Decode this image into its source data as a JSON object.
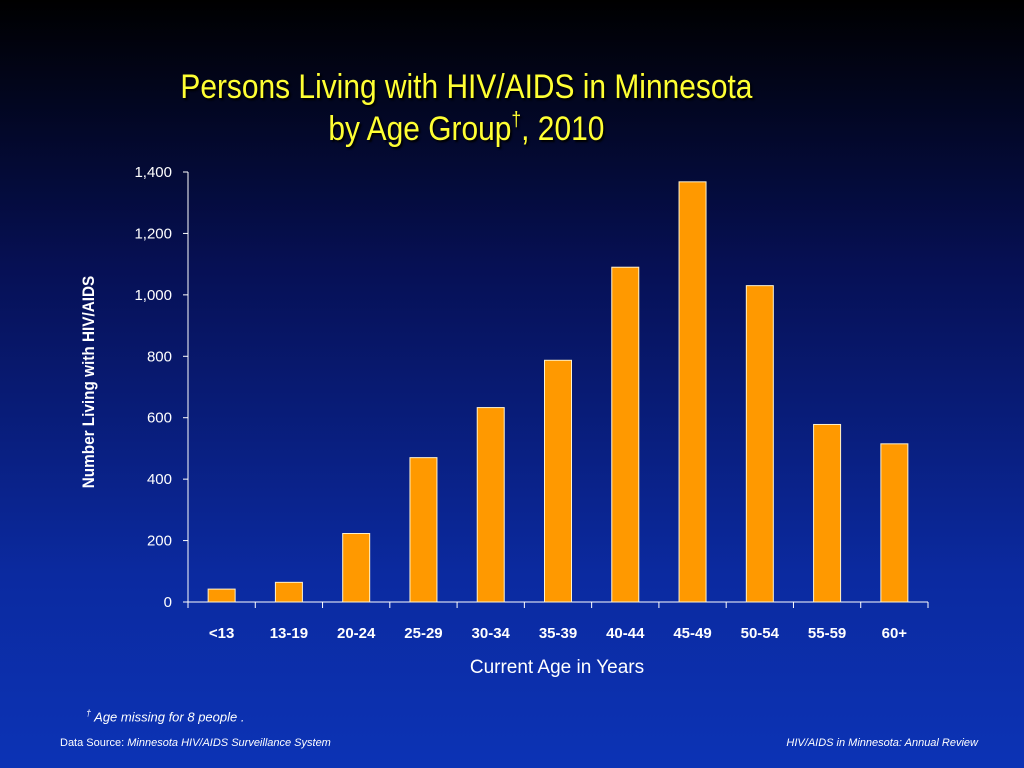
{
  "chart_data": {
    "type": "bar",
    "title_line1": "Persons Living with HIV/AIDS in Minnesota",
    "title_line2_prefix": "by Age Group",
    "title_mark": "†",
    "title_line2_suffix": ", 2010",
    "xlabel": "Current Age in Years",
    "ylabel": "Number Living with HIV/AIDS",
    "categories": [
      "<13",
      "13-19",
      "20-24",
      "25-29",
      "30-34",
      "35-39",
      "40-44",
      "45-49",
      "50-54",
      "55-59",
      "60+"
    ],
    "values": [
      42,
      64,
      223,
      470,
      633,
      787,
      1090,
      1368,
      1030,
      578,
      515
    ],
    "ylim": [
      0,
      1400
    ],
    "yticks": [
      0,
      200,
      400,
      600,
      800,
      1000,
      1200,
      1400
    ],
    "ytick_labels": [
      "0",
      "200",
      "400",
      "600",
      "800",
      "1,000",
      "1,200",
      "1,400"
    ],
    "grid": false,
    "bar_color": "#ff9900",
    "text_color": "#ffffff",
    "title_color": "#ffff33"
  },
  "footnote": {
    "mark": "†",
    "text": " Age missing for 8 people ."
  },
  "footer": {
    "source_label": "Data Source:  ",
    "source_name": "Minnesota HIV/AIDS Surveillance System",
    "review": "HIV/AIDS in Minnesota: Annual Review"
  }
}
